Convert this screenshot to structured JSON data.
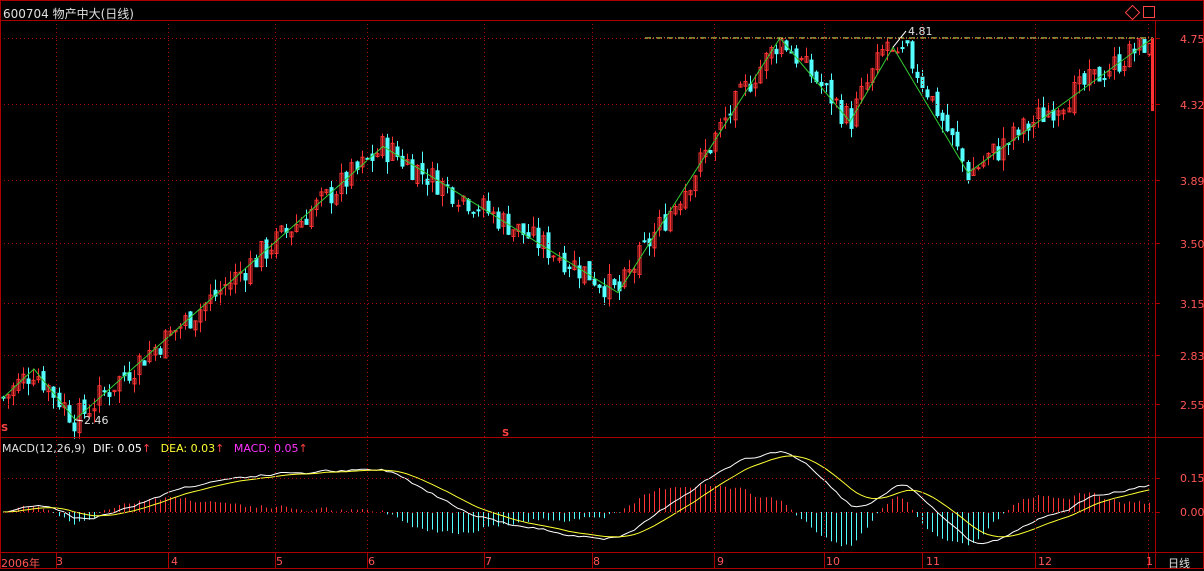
{
  "header": {
    "title": "600704 物产中大(日线)",
    "icons": [
      "diamond-icon",
      "window-icon"
    ]
  },
  "price_axis_labels": [
    "4.75",
    "4.32",
    "3.89",
    "3.50",
    "3.15",
    "2.83",
    "2.55"
  ],
  "markers": {
    "low": "2.46",
    "high": "4.81",
    "dividend_marks": [
      "S",
      "S"
    ]
  },
  "macd": {
    "prefix": "MACD(12,26,9)",
    "dif": "DIF: 0.05",
    "dea": "DEA: 0.03",
    "macd": "MACD: 0.05",
    "arrows": [
      "↑",
      "↑",
      "↑"
    ],
    "axis_labels": [
      "0.15",
      "0.00"
    ]
  },
  "x_axis": {
    "labels": [
      "2006年",
      "3",
      "4",
      "5",
      "6",
      "7",
      "8",
      "9",
      "10",
      "11",
      "12",
      "1"
    ],
    "period": "日线"
  },
  "colors": {
    "up": "#ff3333",
    "down": "#54ffff",
    "grid": "#aa0000",
    "zigzag": "#33cc33",
    "dif": "#ffffff",
    "dea": "#ffff33",
    "macd_label": "#ff33ff",
    "axis_text": "#ff5555"
  },
  "chart_data": [
    {
      "type": "candlestick",
      "title": "600704 物产中大(日线)",
      "y_tick_labels": [
        "2.55",
        "2.83",
        "3.15",
        "3.50",
        "3.89",
        "4.32",
        "4.75"
      ],
      "x_tick_labels": [
        "2006年",
        "3",
        "4",
        "5",
        "6",
        "7",
        "8",
        "9",
        "10",
        "11",
        "12",
        "1"
      ],
      "zigzag_points": [
        [
          2.58
        ],
        [
          2.75
        ],
        [
          2.46
        ],
        [
          4.08
        ],
        [
          3.21
        ],
        [
          4.75
        ],
        [
          4.22
        ],
        [
          4.81
        ],
        [
          3.93
        ],
        [
          4.75
        ]
      ],
      "annotations": [
        "2.46",
        "4.81"
      ],
      "reference_line": 4.75
    },
    {
      "type": "line",
      "title": "MACD(12,26,9)",
      "series": [
        {
          "name": "DIF",
          "last": 0.05
        },
        {
          "name": "DEA",
          "last": 0.03
        },
        {
          "name": "MACD",
          "last": 0.05
        }
      ],
      "y_tick_labels": [
        "0.15",
        "0.00"
      ]
    }
  ]
}
